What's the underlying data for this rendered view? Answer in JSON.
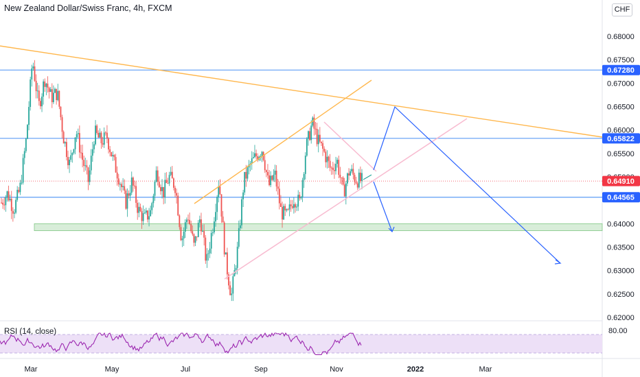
{
  "header": {
    "title": "New Zealand Dollar/Swiss Franc, 4h, FXCM",
    "currency_button": "CHF"
  },
  "indicator": {
    "label": "RSI (14, close)",
    "level_label": "80.00"
  },
  "colors": {
    "bull": "#26a69a",
    "bear": "#ef5350",
    "horizontal_line": "#5b9bf5",
    "trendline": "#ffb74d",
    "pink_channel": "#f8bbd0",
    "projection": "#2962ff",
    "demand_zone": "#c8e6c9",
    "rsi_line": "#9c27b0",
    "rsi_band": "#ede0f7",
    "last_price_tag": "#f23645",
    "level_tag": "#2962ff"
  },
  "chart_data": {
    "type": "candlestick",
    "symbol": "NZDCHF",
    "interval": "4h",
    "y_range": [
      0.6185,
      0.6835
    ],
    "y_tick_labels": [
      "0.68000",
      "0.67500",
      "0.67000",
      "0.66500",
      "0.66000",
      "0.65500",
      "0.65000",
      "0.64000",
      "0.63500",
      "0.63000",
      "0.62500",
      "0.62000"
    ],
    "x_labels": [
      "Mar",
      "May",
      "Jul",
      "Sep",
      "Nov",
      "2022",
      "Mar"
    ],
    "last_price": "0.64910",
    "horizontal_levels": [
      "0.67280",
      "0.65822",
      "0.64565"
    ],
    "demand_zone": [
      0.6385,
      0.64
    ],
    "price_path": [
      {
        "x": "Feb",
        "y": 0.6445
      },
      {
        "x": "Feb",
        "y": 0.6465
      },
      {
        "x": "Feb",
        "y": 0.643
      },
      {
        "x": "Feb",
        "y": 0.6475
      },
      {
        "x": "Feb",
        "y": 0.658
      },
      {
        "x": "Mar",
        "y": 0.675
      },
      {
        "x": "Mar",
        "y": 0.665
      },
      {
        "x": "Mar",
        "y": 0.671
      },
      {
        "x": "Mar",
        "y": 0.667
      },
      {
        "x": "Mar",
        "y": 0.668
      },
      {
        "x": "Apr",
        "y": 0.6585
      },
      {
        "x": "Apr",
        "y": 0.6525
      },
      {
        "x": "Apr",
        "y": 0.66
      },
      {
        "x": "Apr",
        "y": 0.654
      },
      {
        "x": "Apr",
        "y": 0.649
      },
      {
        "x": "Apr",
        "y": 0.6595
      },
      {
        "x": "May",
        "y": 0.6575
      },
      {
        "x": "May",
        "y": 0.6585
      },
      {
        "x": "May",
        "y": 0.6535
      },
      {
        "x": "May",
        "y": 0.6495
      },
      {
        "x": "May",
        "y": 0.6445
      },
      {
        "x": "Jun",
        "y": 0.649
      },
      {
        "x": "Jun",
        "y": 0.643
      },
      {
        "x": "Jun",
        "y": 0.641
      },
      {
        "x": "Jun",
        "y": 0.6425
      },
      {
        "x": "Jun",
        "y": 0.6515
      },
      {
        "x": "Jun",
        "y": 0.6465
      },
      {
        "x": "Jul",
        "y": 0.65
      },
      {
        "x": "Jul",
        "y": 0.648
      },
      {
        "x": "Jul",
        "y": 0.6365
      },
      {
        "x": "Jul",
        "y": 0.642
      },
      {
        "x": "Jul",
        "y": 0.635
      },
      {
        "x": "Jul",
        "y": 0.6415
      },
      {
        "x": "Aug",
        "y": 0.6315
      },
      {
        "x": "Aug",
        "y": 0.6395
      },
      {
        "x": "Aug",
        "y": 0.6495
      },
      {
        "x": "Aug",
        "y": 0.633
      },
      {
        "x": "Aug",
        "y": 0.6245
      },
      {
        "x": "Aug",
        "y": 0.6345
      },
      {
        "x": "Sep",
        "y": 0.649
      },
      {
        "x": "Sep",
        "y": 0.6525
      },
      {
        "x": "Sep",
        "y": 0.6545
      },
      {
        "x": "Sep",
        "y": 0.656
      },
      {
        "x": "Sep",
        "y": 0.648
      },
      {
        "x": "Sep",
        "y": 0.6505
      },
      {
        "x": "Oct",
        "y": 0.6425
      },
      {
        "x": "Oct",
        "y": 0.6415
      },
      {
        "x": "Oct",
        "y": 0.6455
      },
      {
        "x": "Oct",
        "y": 0.6445
      },
      {
        "x": "Oct",
        "y": 0.656
      },
      {
        "x": "Oct",
        "y": 0.6615
      },
      {
        "x": "Oct",
        "y": 0.6575
      },
      {
        "x": "Nov",
        "y": 0.655
      },
      {
        "x": "Nov",
        "y": 0.6515
      },
      {
        "x": "Nov",
        "y": 0.6535
      },
      {
        "x": "Nov",
        "y": 0.6465
      },
      {
        "x": "Nov",
        "y": 0.6515
      },
      {
        "x": "Nov",
        "y": 0.6495
      },
      {
        "x": "Nov",
        "y": 0.6491
      }
    ]
  }
}
